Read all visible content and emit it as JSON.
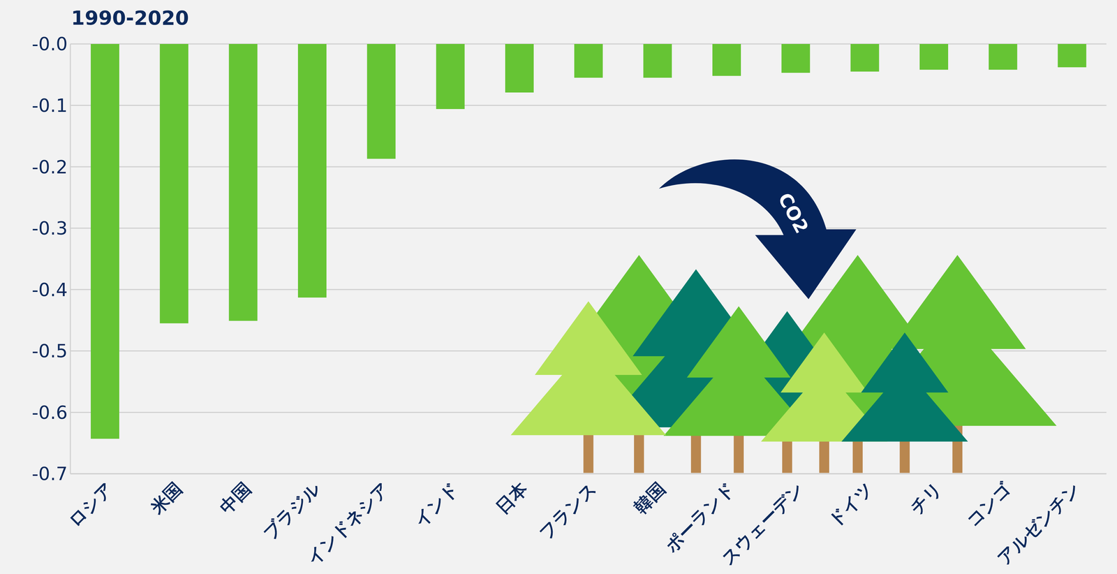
{
  "chart_data": {
    "type": "bar",
    "title": "1990-2020",
    "categories": [
      "ロシア",
      "米国",
      "中国",
      "ブラジル",
      "インドネシア",
      "インド",
      "日本",
      "フランス",
      "韓国",
      "ポーランド",
      "スウェーデン",
      "ドイツ",
      "チリ",
      "コンゴ",
      "アルゼンチン"
    ],
    "values": [
      -0.643,
      -0.455,
      -0.451,
      -0.413,
      -0.187,
      -0.106,
      -0.079,
      -0.055,
      -0.055,
      -0.052,
      -0.047,
      -0.045,
      -0.042,
      -0.042,
      -0.038
    ],
    "color": "#66c434",
    "ylim": [
      -0.7,
      0
    ],
    "yticks": [
      {
        "value": 0,
        "label": "-0.0"
      },
      -0.1,
      -0.2,
      -0.3,
      -0.4,
      -0.5,
      -0.6,
      -0.7
    ],
    "grid": true,
    "annotations": [
      "CO2"
    ]
  }
}
